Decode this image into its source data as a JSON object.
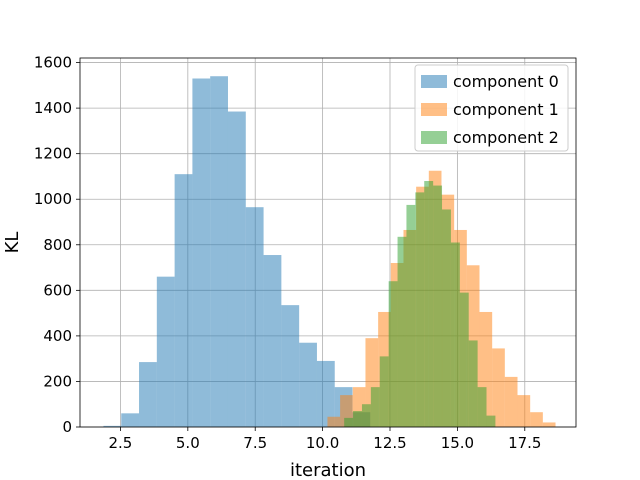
{
  "chart_data": {
    "type": "bar",
    "xlabel": "iteration",
    "ylabel": "KL",
    "xlim": [
      1.0,
      19.4
    ],
    "ylim": [
      0,
      1620
    ],
    "x_ticks": [
      2.5,
      5.0,
      7.5,
      10.0,
      12.5,
      15.0,
      17.5
    ],
    "x_tick_labels": [
      "2.5",
      "5.0",
      "7.5",
      "10.0",
      "12.5",
      "15.0",
      "17.5"
    ],
    "y_ticks": [
      0,
      200,
      400,
      600,
      800,
      1000,
      1200,
      1400,
      1600
    ],
    "y_tick_labels": [
      "0",
      "200",
      "400",
      "600",
      "800",
      "1000",
      "1200",
      "1400",
      "1600"
    ],
    "grid": true,
    "legend_position": "top-right",
    "series": [
      {
        "name": "component 0",
        "color": "#1f77b4",
        "opacity": 0.5,
        "bin_width": 0.66,
        "x": [
          1.87,
          2.53,
          3.19,
          3.85,
          4.51,
          5.17,
          5.83,
          6.49,
          7.15,
          7.81,
          8.47,
          9.13,
          9.79,
          10.45,
          11.11
        ],
        "values": [
          5,
          60,
          285,
          660,
          1110,
          1530,
          1540,
          1385,
          965,
          755,
          535,
          370,
          290,
          175,
          65
        ]
      },
      {
        "name": "component 1",
        "color": "#ff7f0e",
        "opacity": 0.5,
        "bin_width": 0.47,
        "x": [
          10.18,
          10.65,
          11.12,
          11.59,
          12.06,
          12.53,
          13.0,
          13.47,
          13.94,
          14.41,
          14.88,
          15.35,
          15.82,
          16.29,
          16.76,
          17.23,
          17.7,
          18.17
        ],
        "values": [
          45,
          140,
          175,
          390,
          505,
          720,
          865,
          1055,
          1125,
          1020,
          865,
          710,
          505,
          345,
          220,
          140,
          65,
          20
        ]
      },
      {
        "name": "component 2",
        "color": "#2ca02c",
        "opacity": 0.5,
        "bin_width": 0.33,
        "x": [
          10.8,
          11.13,
          11.46,
          11.79,
          12.12,
          12.45,
          12.78,
          13.11,
          13.44,
          13.77,
          14.1,
          14.43,
          14.76,
          15.09,
          15.42,
          15.75,
          16.08
        ],
        "values": [
          40,
          70,
          100,
          175,
          310,
          640,
          835,
          975,
          1030,
          1080,
          1060,
          955,
          810,
          590,
          380,
          175,
          50
        ]
      }
    ]
  }
}
